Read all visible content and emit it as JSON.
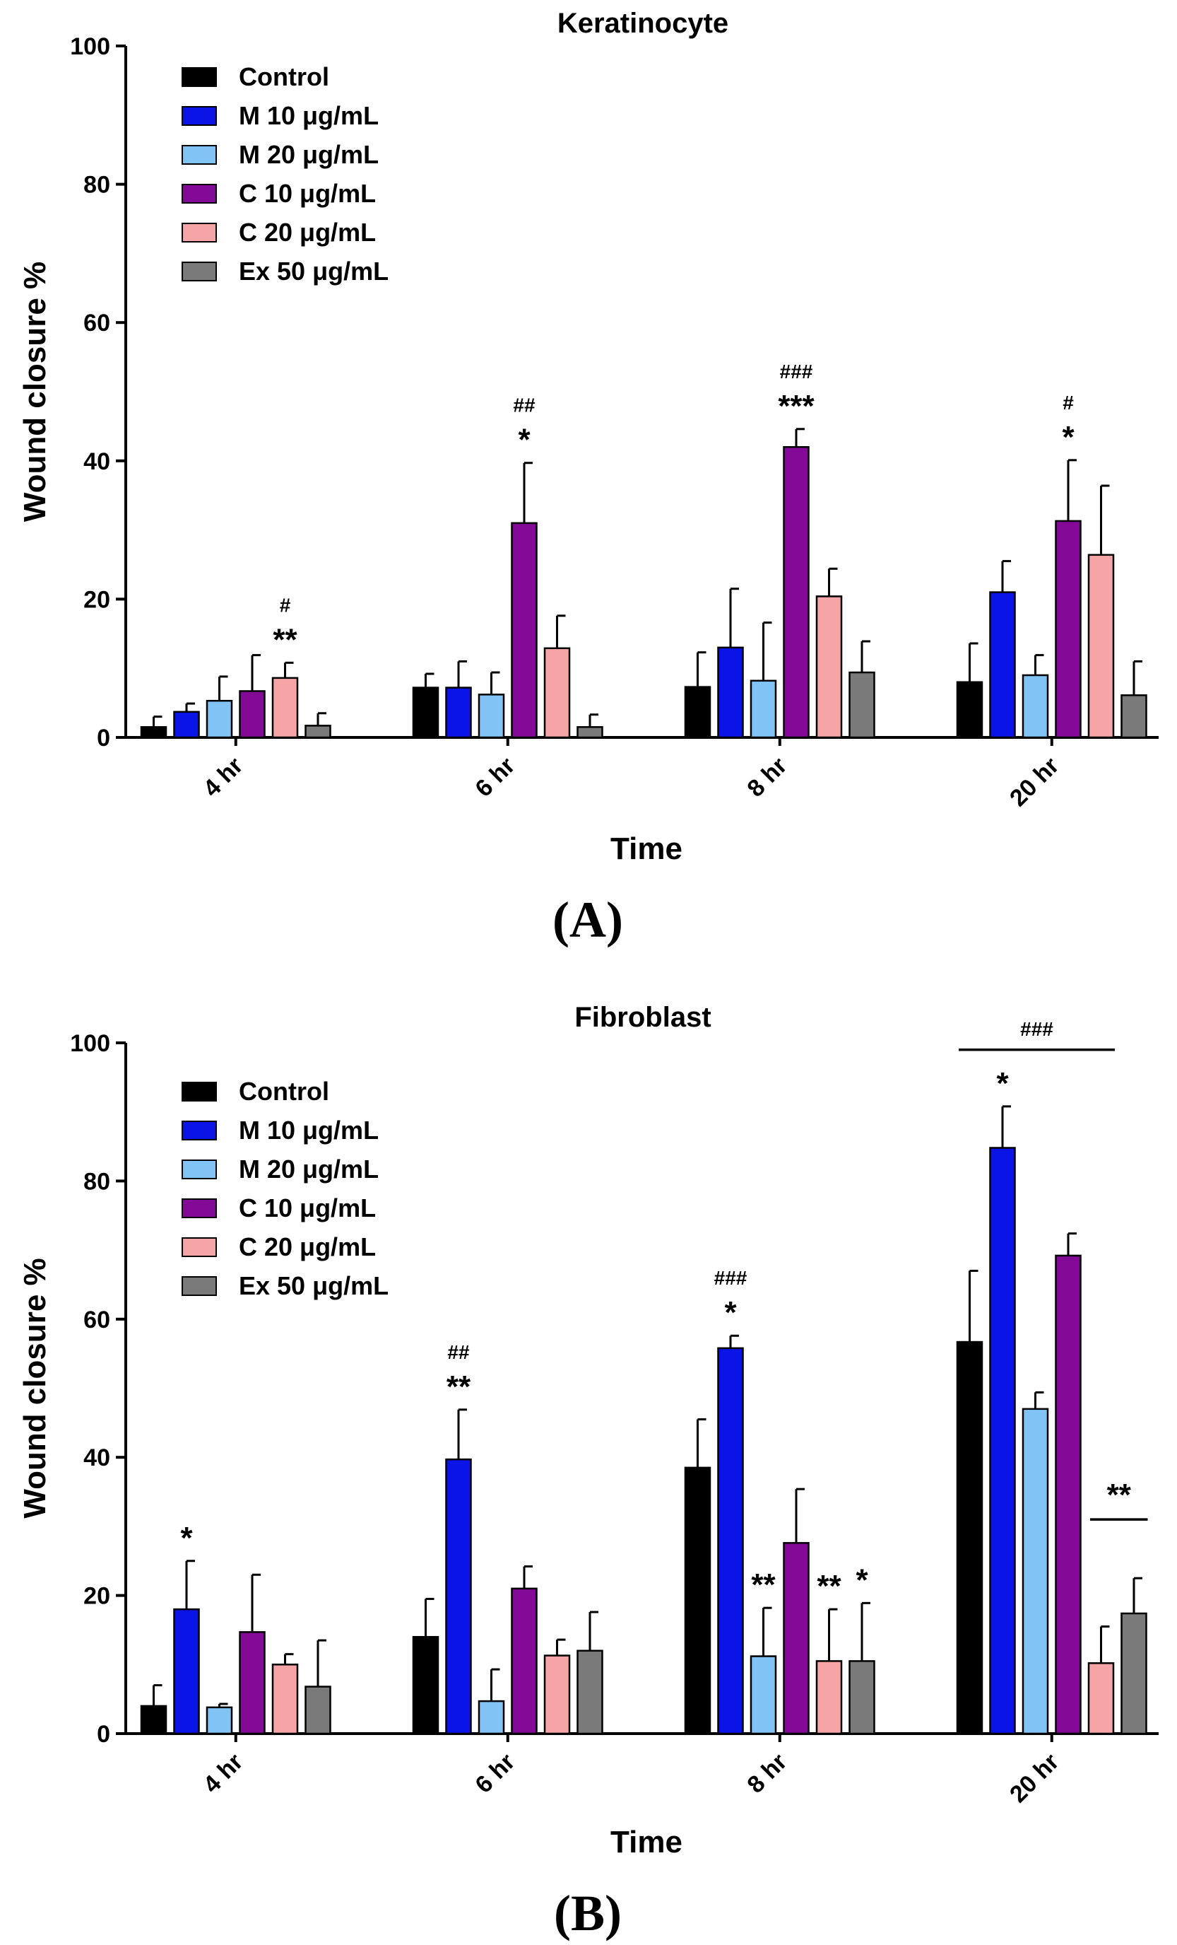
{
  "chart_data": [
    {
      "type": "bar",
      "panel": "(A)",
      "title": "Keratinocyte",
      "xlabel": "Time",
      "ylabel": "Wound closure %",
      "ylim": [
        0,
        100
      ],
      "yticks": [
        0,
        20,
        40,
        60,
        80,
        100
      ],
      "categories": [
        "4 hr",
        "6 hr",
        "8 hr",
        "20 hr"
      ],
      "legend_position": "top-left",
      "series": [
        {
          "name": "Control",
          "color": "#000000",
          "values": [
            1.5,
            7.2,
            7.3,
            8.0
          ],
          "errors": [
            1.5,
            2.0,
            5.0,
            5.6
          ]
        },
        {
          "name": "M 10 μg/mL",
          "color": "#0a14e6",
          "values": [
            3.7,
            7.2,
            13.0,
            21.0
          ],
          "errors": [
            1.2,
            3.8,
            8.5,
            4.5
          ]
        },
        {
          "name": "M 20 μg/mL",
          "color": "#82c3f5",
          "values": [
            5.3,
            6.2,
            8.2,
            9.0
          ],
          "errors": [
            3.5,
            3.2,
            8.4,
            2.9
          ]
        },
        {
          "name": "C 10 μg/mL",
          "color": "#820a96",
          "values": [
            6.7,
            31.0,
            42.0,
            31.3
          ],
          "errors": [
            5.2,
            8.7,
            2.6,
            8.8
          ]
        },
        {
          "name": "C 20 μg/mL",
          "color": "#f5a5a5",
          "values": [
            8.6,
            12.9,
            20.4,
            26.4
          ],
          "errors": [
            2.2,
            4.7,
            4.0,
            10.0
          ]
        },
        {
          "name": "Ex 50 μg/mL",
          "color": "#7a7a7a",
          "values": [
            1.7,
            1.5,
            9.4,
            6.1
          ],
          "errors": [
            1.8,
            1.8,
            4.5,
            4.9
          ]
        }
      ],
      "annotations": [
        {
          "category": 0,
          "series": 4,
          "stars": "**",
          "hash": "#"
        },
        {
          "category": 1,
          "series": 3,
          "stars": "*",
          "hash": "##"
        },
        {
          "category": 2,
          "series": 3,
          "stars": "***",
          "hash": "###"
        },
        {
          "category": 3,
          "series": 3,
          "stars": "*",
          "hash": "#"
        }
      ],
      "brackets": []
    },
    {
      "type": "bar",
      "panel": "(B)",
      "title": "Fibroblast",
      "xlabel": "Time",
      "ylabel": "Wound closure %",
      "ylim": [
        0,
        100
      ],
      "yticks": [
        0,
        20,
        40,
        60,
        80,
        100
      ],
      "categories": [
        "4 hr",
        "6 hr",
        "8 hr",
        "20 hr"
      ],
      "legend_position": "top-left",
      "series": [
        {
          "name": "Control",
          "color": "#000000",
          "values": [
            4.0,
            14.0,
            38.5,
            56.7
          ],
          "errors": [
            3.0,
            5.5,
            7.0,
            10.3
          ]
        },
        {
          "name": "M 10 μg/mL",
          "color": "#0a14e6",
          "values": [
            18.0,
            39.7,
            55.8,
            84.8
          ],
          "errors": [
            7.0,
            7.2,
            1.8,
            6.0
          ]
        },
        {
          "name": "M 20 μg/mL",
          "color": "#82c3f5",
          "values": [
            3.8,
            4.7,
            11.2,
            47.0
          ],
          "errors": [
            0.5,
            4.6,
            7.0,
            2.4
          ]
        },
        {
          "name": "C 10 μg/mL",
          "color": "#820a96",
          "values": [
            14.7,
            21.0,
            27.6,
            69.2
          ],
          "errors": [
            8.3,
            3.2,
            7.8,
            3.2
          ]
        },
        {
          "name": "C 20 μg/mL",
          "color": "#f5a5a5",
          "values": [
            10.0,
            11.3,
            10.5,
            10.2
          ],
          "errors": [
            1.5,
            2.3,
            7.5,
            5.3
          ]
        },
        {
          "name": "Ex 50 μg/mL",
          "color": "#7a7a7a",
          "values": [
            6.8,
            12.0,
            10.5,
            17.4
          ],
          "errors": [
            6.7,
            5.6,
            8.4,
            5.1
          ]
        }
      ],
      "annotations": [
        {
          "category": 0,
          "series": 1,
          "stars": "*",
          "hash": ""
        },
        {
          "category": 1,
          "series": 1,
          "stars": "**",
          "hash": "##"
        },
        {
          "category": 2,
          "series": 1,
          "stars": "*",
          "hash": "###"
        },
        {
          "category": 2,
          "series": 2,
          "stars": "**",
          "hash": ""
        },
        {
          "category": 2,
          "series": 4,
          "stars": "**",
          "hash": ""
        },
        {
          "category": 2,
          "series": 5,
          "stars": "*",
          "hash": ""
        },
        {
          "category": 3,
          "series": 1,
          "stars": "*",
          "hash": ""
        }
      ],
      "brackets": [
        {
          "category": 3,
          "from_series": 0,
          "to_series": 4,
          "y": 99,
          "label": "###"
        },
        {
          "category": 3,
          "from_series": 4,
          "to_series": 5,
          "y": 31,
          "label": "**"
        }
      ]
    }
  ]
}
